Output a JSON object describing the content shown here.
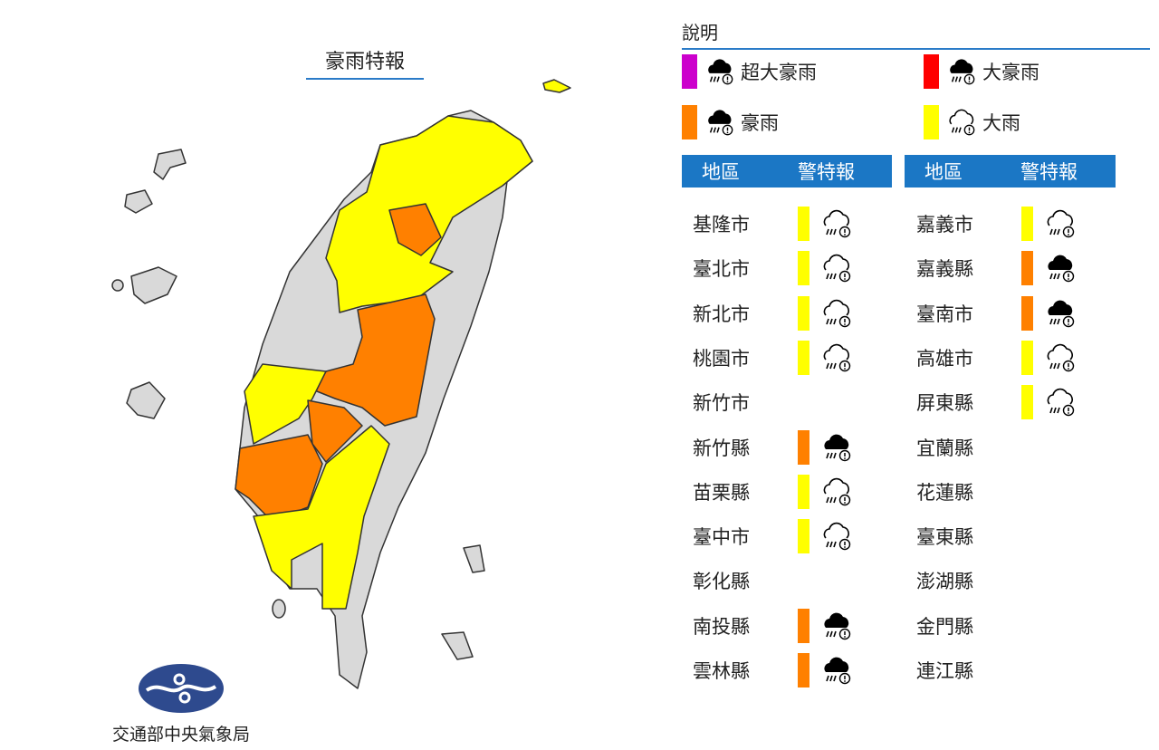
{
  "map": {
    "title": "豪雨特報",
    "agency": "交通部中央氣象局",
    "colors": {
      "land": "#d9d9d9",
      "border": "#333333",
      "yellow": "#ffff00",
      "orange": "#ff8000"
    }
  },
  "legend": {
    "title": "說明",
    "items": [
      {
        "label": "超大豪雨",
        "color": "#cc00cc",
        "icon": "cloud-rain-lightning-filled-icon"
      },
      {
        "label": "大豪雨",
        "color": "#ff0000",
        "icon": "cloud-rain-filled-icon"
      },
      {
        "label": "豪雨",
        "color": "#ff8000",
        "icon": "cloud-rain-filled-icon"
      },
      {
        "label": "大雨",
        "color": "#ffff00",
        "icon": "cloud-rain-outline-icon"
      }
    ]
  },
  "table": {
    "header_region": "地區",
    "header_warning": "警特報",
    "left": [
      {
        "region": "基隆市",
        "level": "大雨"
      },
      {
        "region": "臺北市",
        "level": "大雨"
      },
      {
        "region": "新北市",
        "level": "大雨"
      },
      {
        "region": "桃園市",
        "level": "大雨"
      },
      {
        "region": "新竹市",
        "level": ""
      },
      {
        "region": "新竹縣",
        "level": "豪雨"
      },
      {
        "region": "苗栗縣",
        "level": "大雨"
      },
      {
        "region": "臺中市",
        "level": "大雨"
      },
      {
        "region": "彰化縣",
        "level": ""
      },
      {
        "region": "南投縣",
        "level": "豪雨"
      },
      {
        "region": "雲林縣",
        "level": "豪雨"
      }
    ],
    "right": [
      {
        "region": "嘉義市",
        "level": "大雨"
      },
      {
        "region": "嘉義縣",
        "level": "豪雨"
      },
      {
        "region": "臺南市",
        "level": "豪雨"
      },
      {
        "region": "高雄市",
        "level": "大雨"
      },
      {
        "region": "屏東縣",
        "level": "大雨"
      },
      {
        "region": "宜蘭縣",
        "level": ""
      },
      {
        "region": "花蓮縣",
        "level": ""
      },
      {
        "region": "臺東縣",
        "level": ""
      },
      {
        "region": "澎湖縣",
        "level": ""
      },
      {
        "region": "金門縣",
        "level": ""
      },
      {
        "region": "連江縣",
        "level": ""
      }
    ]
  }
}
